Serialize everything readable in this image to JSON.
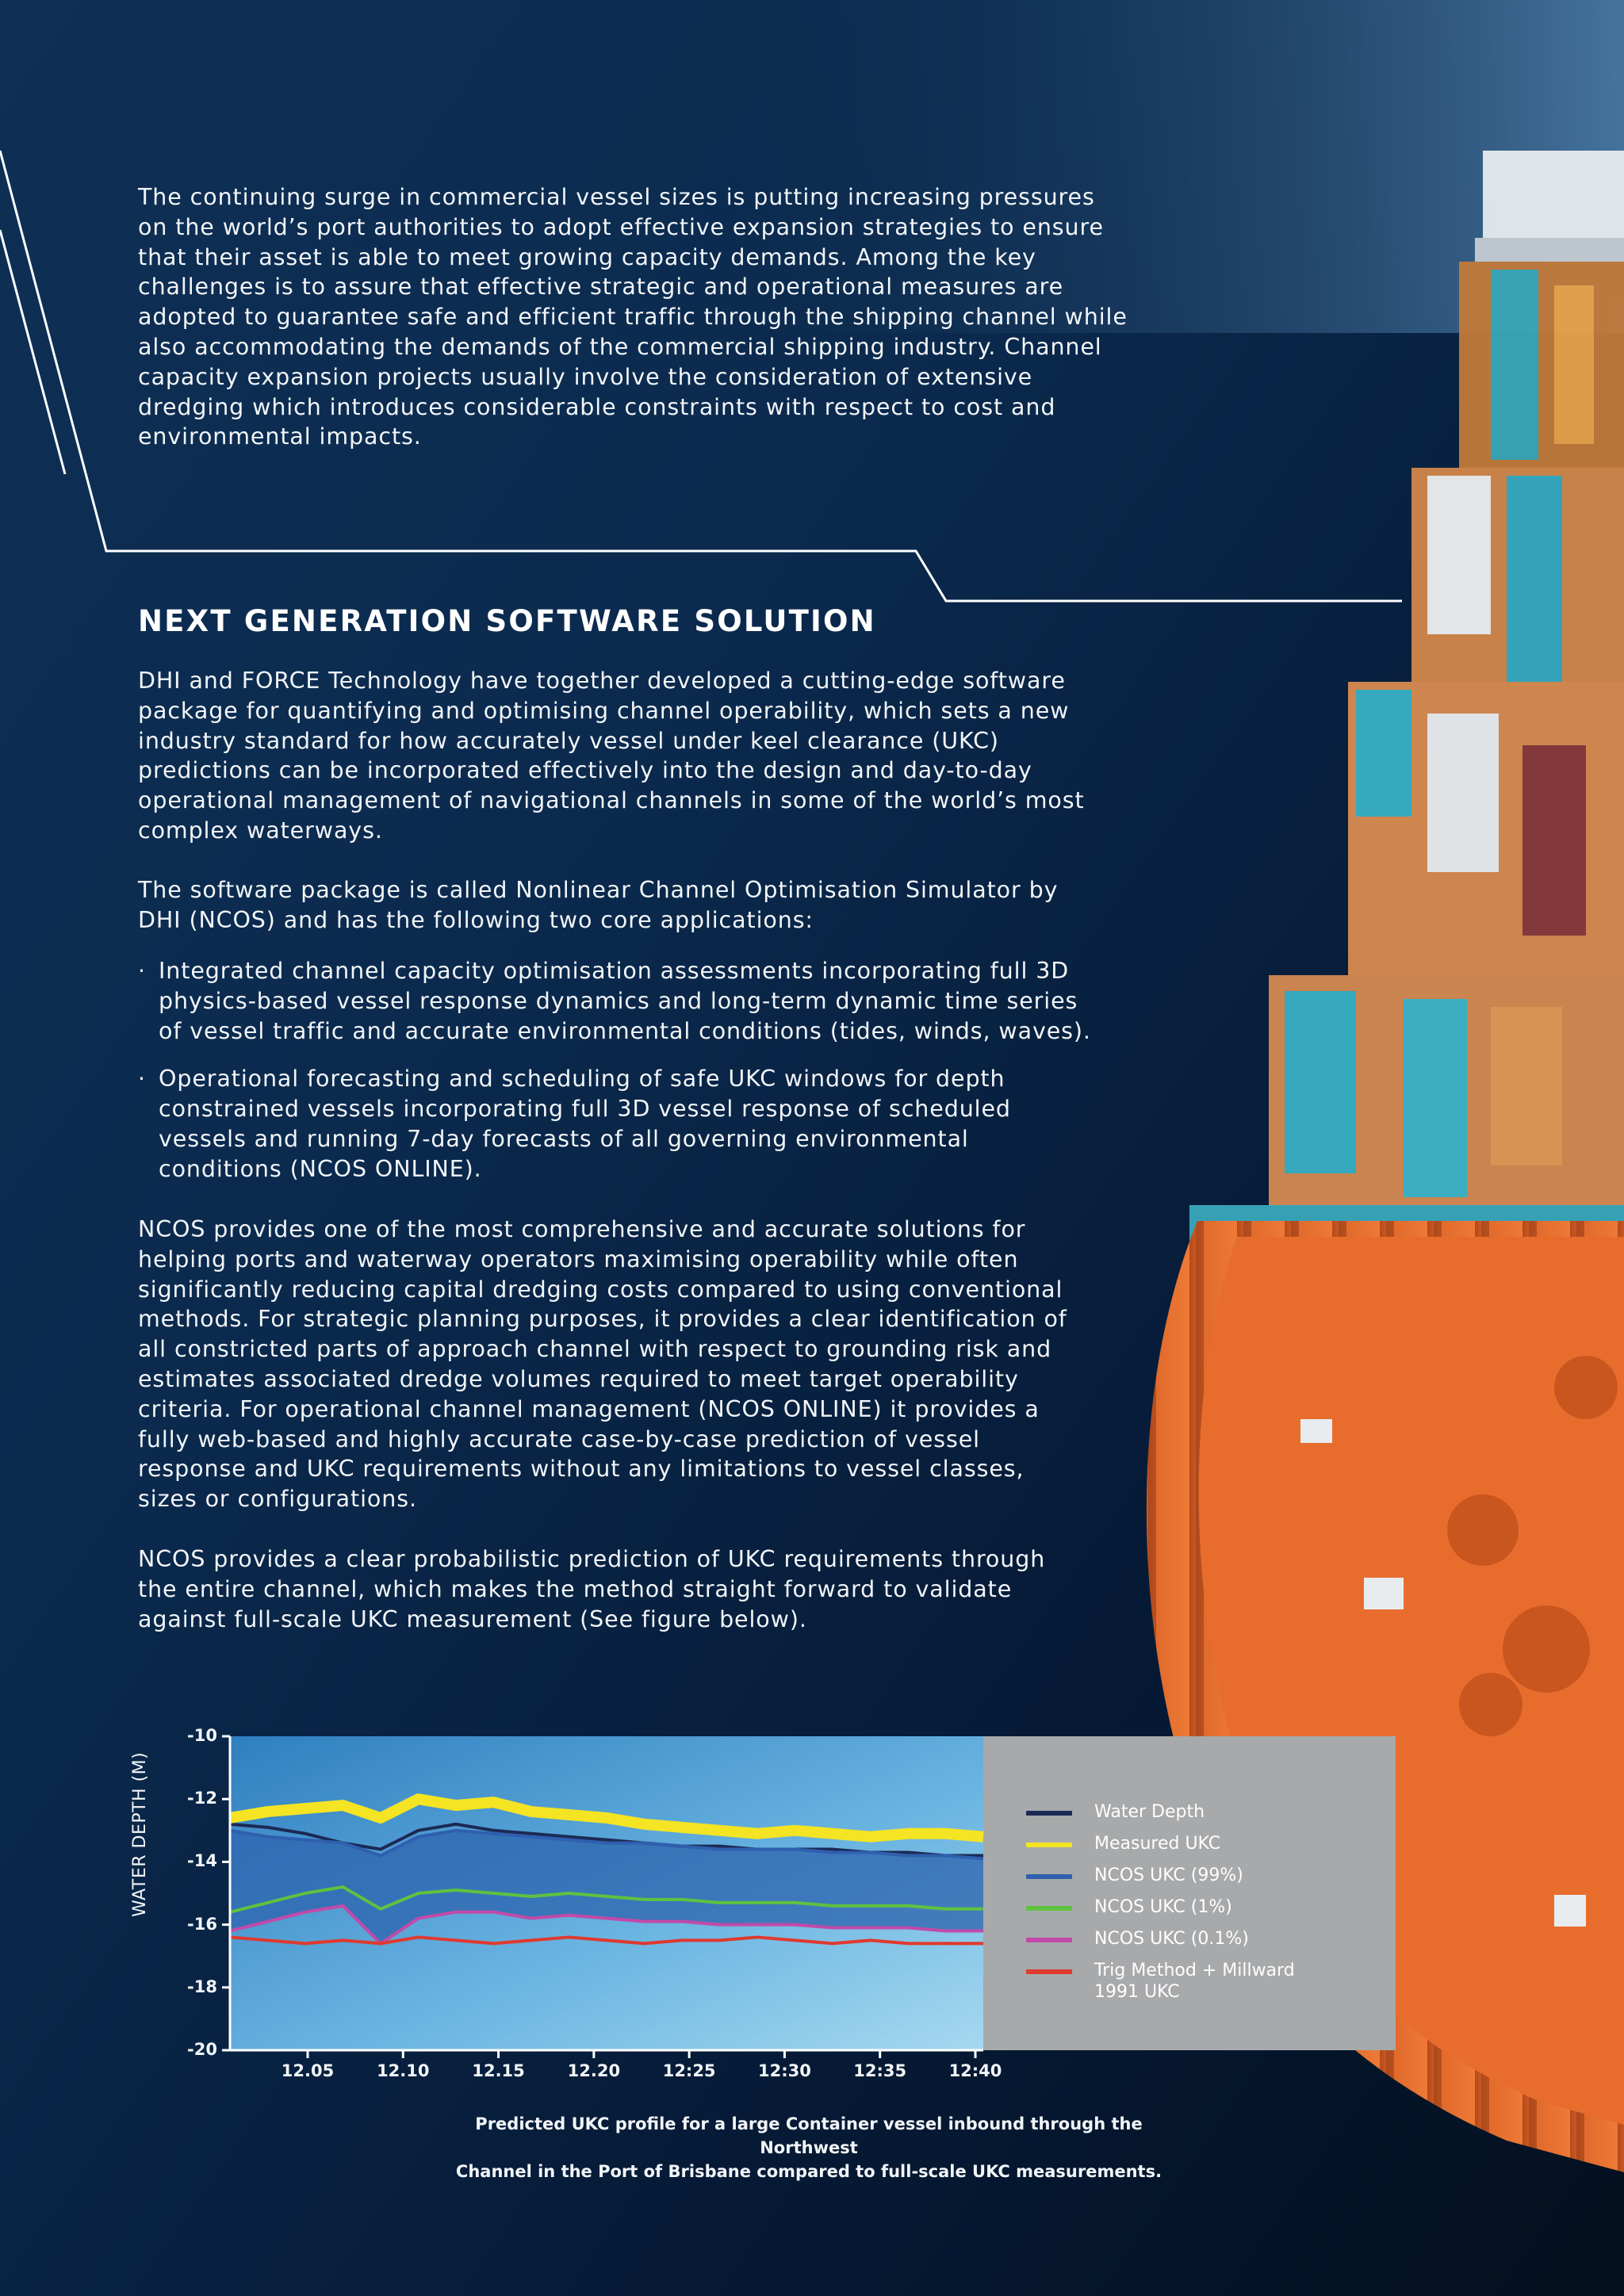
{
  "intro": {
    "lines": [
      "The continuing surge in commercial vessel sizes is putting increasing pressures",
      "on the world’s port authorities to adopt effective expansion strategies to ensure",
      "that their asset is able to meet growing capacity demands. Among the key",
      "challenges is to assure that effective strategic and operational measures are",
      "adopted to guarantee safe and efficient traffic through the shipping channel while",
      "also accommodating the demands of the commercial shipping industry. Channel",
      "capacity expansion projects usually involve the consideration of extensive",
      "dredging which introduces considerable constraints with respect to cost and",
      "environmental impacts."
    ]
  },
  "section": {
    "heading": "NEXT GENERATION SOFTWARE SOLUTION",
    "para1": [
      "DHI and FORCE Technology have together developed a cutting-edge software",
      "package for quantifying and optimising channel operability, which sets a new",
      "industry standard for how accurately vessel under keel clearance (UKC)",
      "predictions can be incorporated effectively into the design and day-to-day",
      "operational management of navigational channels in some of the world’s most",
      "complex waterways."
    ],
    "para2": [
      "The software package is called Nonlinear Channel Optimisation Simulator by",
      "DHI (NCOS) and has the following two core applications:"
    ],
    "bullet_marker": "·",
    "bullets": [
      [
        "Integrated channel capacity optimisation assessments incorporating full 3D",
        "physics-based vessel response dynamics and long-term dynamic time series",
        "of vessel traffic and accurate environmental conditions (tides, winds, waves)."
      ],
      [
        "Operational forecasting and scheduling of safe UKC windows for depth",
        "constrained vessels incorporating full 3D vessel response of scheduled",
        "vessels and running 7-day forecasts of all governing environmental",
        "conditions (NCOS ONLINE)."
      ]
    ],
    "para3": [
      "NCOS provides one of the most comprehensive and accurate solutions for",
      "helping ports and waterway operators maximising operability while often",
      "significantly reducing capital dredging costs compared to using conventional",
      "methods.  For strategic planning purposes, it provides a clear identification of",
      "all constricted parts of approach channel with respect to grounding risk and",
      "estimates associated dredge volumes required to meet target operability",
      "criteria. For operational channel management (NCOS ONLINE) it provides a",
      "fully web-based and highly accurate case-by-case prediction of vessel",
      "response and UKC requirements without any limitations to vessel classes,",
      "sizes or configurations."
    ],
    "para4": [
      "NCOS provides a clear probabilistic prediction of UKC requirements through",
      "the entire channel, which makes the method straight forward to validate",
      "against full-scale UKC measurement (See figure below)."
    ]
  },
  "chart_data": {
    "type": "line",
    "ylabel": "WATER DEPTH (M)",
    "xlabel": "",
    "ylim": [
      -20,
      -10
    ],
    "y_ticks": [
      "-10",
      "-12",
      "-14",
      "-16",
      "-18",
      "-20"
    ],
    "x_tick_labels": [
      "12.05",
      "12.10",
      "12.15",
      "12.20",
      "12:25",
      "12:30",
      "12:35",
      "12:40"
    ],
    "x": [
      0,
      1,
      2,
      3,
      4,
      5,
      6,
      7,
      8,
      9,
      10,
      11,
      12,
      13,
      14,
      15,
      16,
      17,
      18,
      19,
      20
    ],
    "series": [
      {
        "name": "Water Depth",
        "color": "#1c2a55",
        "values": [
          -12.8,
          -12.9,
          -13.1,
          -13.4,
          -13.6,
          -13.0,
          -12.8,
          -13.0,
          -13.1,
          -13.2,
          -13.3,
          -13.4,
          -13.5,
          -13.5,
          -13.6,
          -13.6,
          -13.6,
          -13.7,
          -13.7,
          -13.8,
          -13.8
        ]
      },
      {
        "name": "Measured UKC",
        "color": "#f4e423",
        "values": [
          -12.6,
          -12.4,
          -12.3,
          -12.2,
          -12.6,
          -12.0,
          -12.2,
          -12.1,
          -12.4,
          -12.5,
          -12.6,
          -12.8,
          -12.9,
          -13.0,
          -13.1,
          -13.0,
          -13.1,
          -13.2,
          -13.1,
          -13.1,
          -13.2
        ]
      },
      {
        "name": "NCOS UKC (99%)",
        "color": "#2f5fae",
        "values": [
          -13.0,
          -13.2,
          -13.3,
          -13.4,
          -13.8,
          -13.2,
          -13.0,
          -13.1,
          -13.2,
          -13.3,
          -13.4,
          -13.4,
          -13.5,
          -13.6,
          -13.6,
          -13.6,
          -13.7,
          -13.7,
          -13.8,
          -13.8,
          -13.9
        ]
      },
      {
        "name": "NCOS UKC (1%)",
        "color": "#5fc23f",
        "values": [
          -15.6,
          -15.3,
          -15.0,
          -14.8,
          -15.5,
          -15.0,
          -14.9,
          -15.0,
          -15.1,
          -15.0,
          -15.1,
          -15.2,
          -15.2,
          -15.3,
          -15.3,
          -15.3,
          -15.4,
          -15.4,
          -15.4,
          -15.5,
          -15.5
        ]
      },
      {
        "name": "NCOS UKC (0.1%)",
        "color": "#c24aa8",
        "values": [
          -16.2,
          -15.9,
          -15.6,
          -15.4,
          -16.6,
          -15.8,
          -15.6,
          -15.6,
          -15.8,
          -15.7,
          -15.8,
          -15.9,
          -15.9,
          -16.0,
          -16.0,
          -16.0,
          -16.1,
          -16.1,
          -16.1,
          -16.2,
          -16.2
        ]
      },
      {
        "name": "Trig Method + Millward 1991 UKC",
        "color": "#e0392f",
        "values": [
          -16.4,
          -16.5,
          -16.6,
          -16.5,
          -16.6,
          -16.4,
          -16.5,
          -16.6,
          -16.5,
          -16.4,
          -16.5,
          -16.6,
          -16.5,
          -16.5,
          -16.4,
          -16.5,
          -16.6,
          -16.5,
          -16.6,
          -16.6,
          -16.6
        ]
      }
    ],
    "legend_position": "right"
  },
  "caption": [
    "Predicted UKC profile for a large Container vessel inbound through the Northwest",
    "Channel in the Port of Brisbane compared to full-scale UKC measurements."
  ],
  "colors": {
    "sea_dark": "#041328",
    "sea_mid": "#143a66",
    "sea_light": "#3f7aa8",
    "hull_orange": "#e46a2c",
    "legend_panel": "#a7a9ab"
  }
}
